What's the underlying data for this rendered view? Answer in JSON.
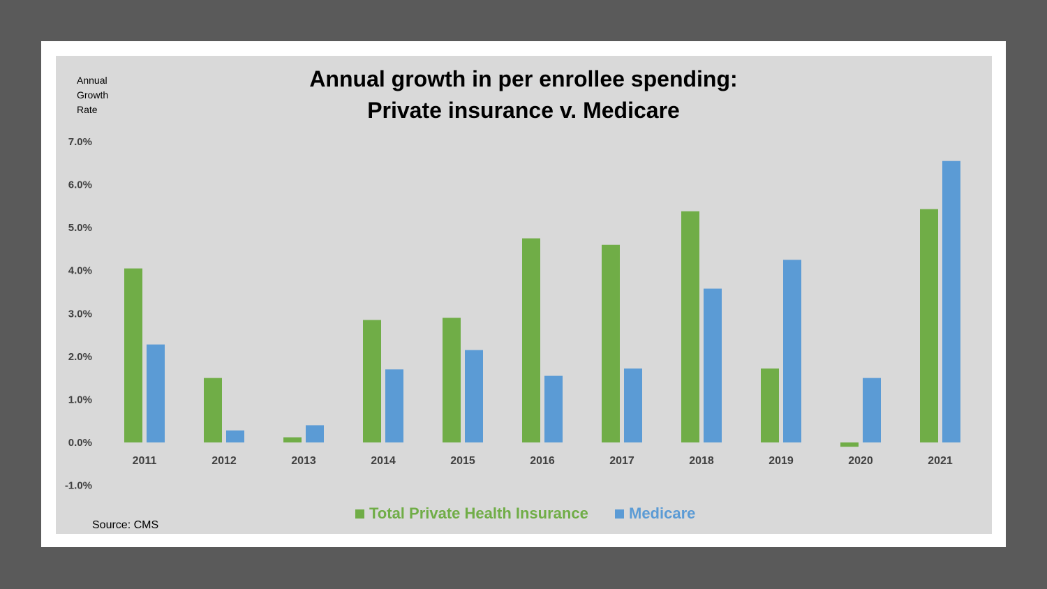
{
  "chart_data": {
    "type": "bar",
    "title_lines": [
      "Annual growth in per enrollee spending:",
      "Private insurance v. Medicare"
    ],
    "ylabel_lines": [
      "Annual",
      "Growth",
      "Rate"
    ],
    "source": "Source: CMS",
    "categories": [
      "2011",
      "2012",
      "2013",
      "2014",
      "2015",
      "2016",
      "2017",
      "2018",
      "2019",
      "2020",
      "2021"
    ],
    "series": [
      {
        "name": "Total Private Health Insurance",
        "color": "#70ad47",
        "values": [
          4.05,
          1.5,
          0.12,
          2.85,
          2.9,
          4.75,
          4.6,
          5.38,
          1.72,
          -0.1,
          5.43
        ]
      },
      {
        "name": "Medicare",
        "color": "#5b9bd5",
        "values": [
          2.28,
          0.28,
          0.4,
          1.7,
          2.15,
          1.55,
          1.72,
          3.58,
          4.25,
          1.5,
          6.55
        ]
      }
    ],
    "yticks": [
      "7.0%",
      "6.0%",
      "5.0%",
      "4.0%",
      "3.0%",
      "2.0%",
      "1.0%",
      "0.0%",
      "-1.0%"
    ],
    "ylim": [
      -1.0,
      7.0
    ],
    "grid": false,
    "legend_position": "bottom"
  }
}
